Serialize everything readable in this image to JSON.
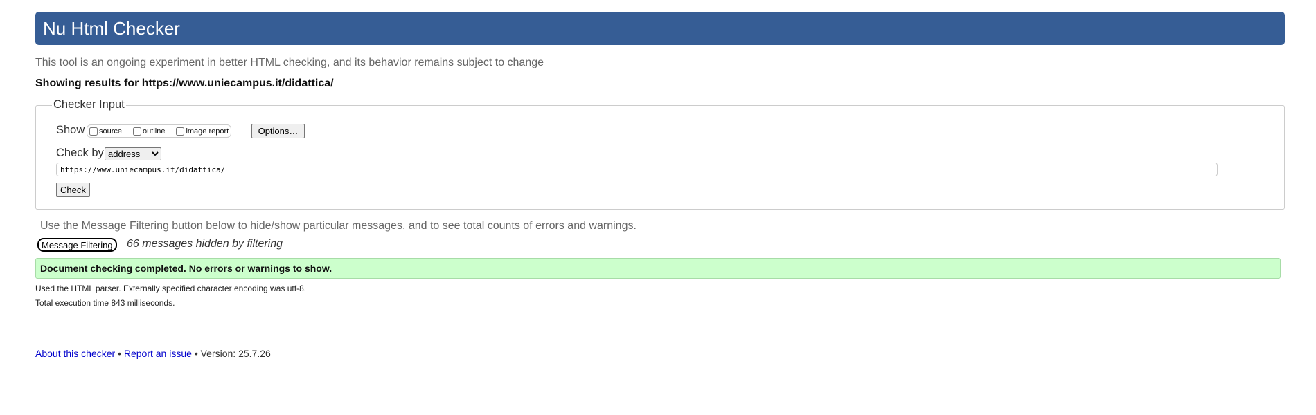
{
  "header": {
    "title": "Nu Html Checker"
  },
  "intro": "This tool is an ongoing experiment in better HTML checking, and its behavior remains subject to change",
  "showing_results": "Showing results for https://www.uniecampus.it/didattica/",
  "checker_input": {
    "legend": "Checker Input",
    "show_label": "Show",
    "show_options": [
      {
        "label": "source",
        "checked": false
      },
      {
        "label": "outline",
        "checked": false
      },
      {
        "label": "image report",
        "checked": false
      }
    ],
    "options_button": "Options…",
    "check_by_label": "Check by",
    "check_by_value": "address",
    "url_value": "https://www.uniecampus.it/didattica/",
    "check_button": "Check"
  },
  "filter_note": "Use the Message Filtering button below to hide/show particular messages, and to see total counts of errors and warnings.",
  "message_filtering_button": "Message Filtering",
  "hidden_count": "66 messages hidden by filtering",
  "success_message": "Document checking completed. No errors or warnings to show.",
  "parser_info": "Used the HTML parser. Externally specified character encoding was utf-8.",
  "execution_time": "Total execution time 843 milliseconds.",
  "footer": {
    "about_link": "About this checker",
    "separator": "•",
    "report_link": "Report an issue",
    "version": "Version: 25.7.26"
  },
  "colors": {
    "header_bg": "#365d95",
    "success_bg": "#ccffcc",
    "link": "#0000cc"
  }
}
